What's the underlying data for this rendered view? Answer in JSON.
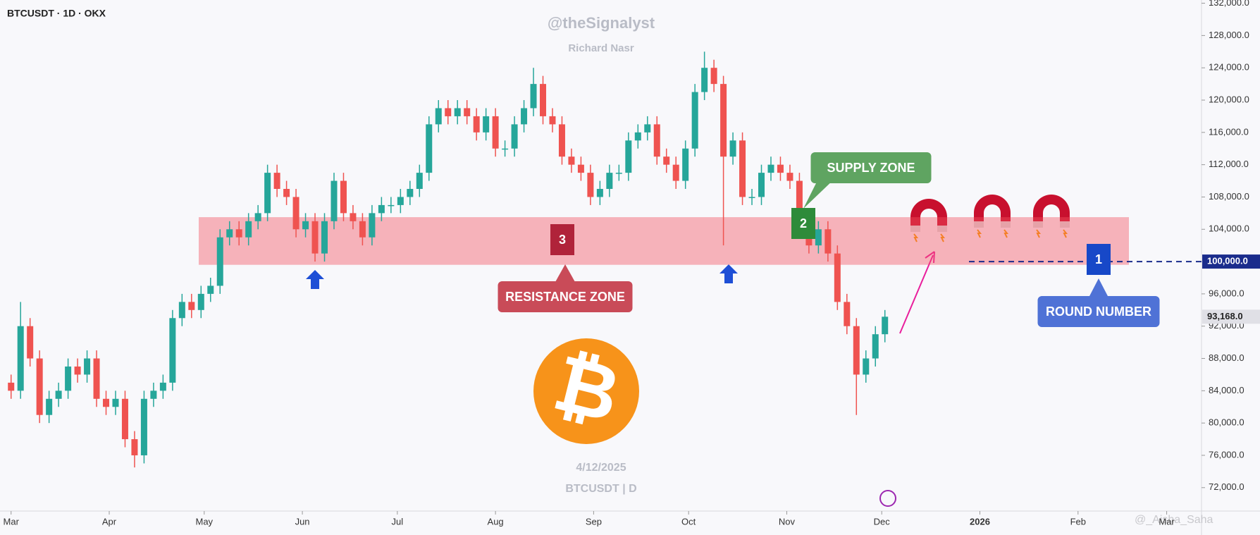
{
  "chart_data": {
    "type": "candlestick",
    "title": "BTCUSDT · 1D · OKX",
    "watermark": {
      "handle": "@theSignalyst",
      "author": "Richard Nasr",
      "date": "4/12/2025",
      "symbol": "BTCUSDT | D"
    },
    "credit": "@_Aisha_Saha",
    "colors": {
      "up": "#26a69a",
      "down": "#ef5350"
    },
    "x": [
      0,
      3,
      6,
      9,
      12,
      15,
      18,
      21,
      24,
      27,
      30,
      33,
      36,
      39,
      42,
      45,
      48,
      51,
      54,
      57,
      60,
      63,
      66,
      69,
      72,
      75,
      78,
      81,
      84,
      87,
      90,
      93,
      96,
      99,
      102,
      105,
      108,
      111,
      114,
      117,
      120,
      123,
      126,
      129,
      132,
      135,
      138,
      141,
      144,
      147,
      150,
      153,
      156,
      159,
      162,
      165,
      168,
      171,
      174,
      177,
      180,
      183,
      186,
      189,
      192,
      195,
      198,
      201,
      204,
      207,
      210,
      213,
      216,
      219,
      222,
      225,
      228,
      231,
      234,
      237,
      240,
      243,
      246,
      249,
      252,
      255,
      258,
      261,
      264,
      267,
      270,
      273,
      276
    ],
    "open": [
      85000,
      84000,
      92000,
      88000,
      81000,
      83000,
      84000,
      87000,
      86000,
      88000,
      83000,
      82000,
      83000,
      78000,
      76000,
      83000,
      84000,
      85000,
      93000,
      95000,
      94000,
      96000,
      97000,
      103000,
      104000,
      103000,
      105000,
      106000,
      111000,
      109000,
      108000,
      104000,
      105000,
      101000,
      105000,
      110000,
      106000,
      105000,
      103000,
      106000,
      107000,
      107000,
      108000,
      109000,
      111000,
      117000,
      119000,
      118000,
      119000,
      118000,
      116000,
      118000,
      114000,
      114000,
      117000,
      119000,
      122000,
      118000,
      117000,
      113000,
      112000,
      111000,
      108000,
      109000,
      111000,
      111000,
      115000,
      116000,
      117000,
      113000,
      112000,
      110000,
      114000,
      121000,
      124000,
      122000,
      113000,
      115000,
      108000,
      108000,
      111000,
      112000,
      111000,
      110000,
      104000,
      102000,
      104000,
      101000,
      95000,
      92000,
      86000,
      88000,
      91000
    ],
    "high": [
      86000,
      95000,
      93000,
      89000,
      84000,
      85000,
      88000,
      88000,
      89000,
      89000,
      84000,
      84000,
      84000,
      79000,
      84000,
      85000,
      86000,
      94000,
      96000,
      96000,
      97000,
      98000,
      104000,
      105000,
      105000,
      106000,
      107000,
      112000,
      112000,
      110000,
      109000,
      106000,
      106000,
      106000,
      111000,
      111000,
      107000,
      106000,
      107000,
      108000,
      108000,
      109000,
      110000,
      112000,
      118000,
      120000,
      120000,
      120000,
      120000,
      119000,
      119000,
      119000,
      115000,
      118000,
      120000,
      124000,
      123000,
      119000,
      118000,
      114000,
      113000,
      112000,
      110000,
      112000,
      112000,
      116000,
      117000,
      118000,
      118000,
      114000,
      113000,
      115000,
      122000,
      126000,
      125000,
      123000,
      116000,
      116000,
      109000,
      112000,
      113000,
      113000,
      112000,
      111000,
      105000,
      105000,
      105000,
      102000,
      96000,
      93000,
      89000,
      92000,
      94000
    ],
    "low": [
      83000,
      83000,
      87000,
      80000,
      80000,
      82000,
      83000,
      85000,
      85000,
      82000,
      81000,
      81000,
      77000,
      74500,
      75000,
      82000,
      83000,
      84000,
      92000,
      93000,
      93000,
      95000,
      96000,
      102000,
      102000,
      102000,
      104000,
      105000,
      108000,
      107000,
      103000,
      103000,
      100000,
      100000,
      104000,
      105000,
      104000,
      102000,
      102000,
      105000,
      106000,
      106000,
      107000,
      108000,
      110000,
      116000,
      117000,
      117000,
      117000,
      115000,
      115000,
      113000,
      113000,
      113000,
      116000,
      118000,
      117000,
      116000,
      112000,
      111000,
      110000,
      107000,
      107000,
      108000,
      110000,
      110000,
      114000,
      115000,
      112000,
      111000,
      109000,
      109000,
      113000,
      120000,
      121000,
      102000,
      112000,
      107000,
      107000,
      107000,
      110000,
      110000,
      109000,
      103000,
      101000,
      101000,
      100000,
      94000,
      91000,
      81000,
      85000,
      87000,
      90000
    ],
    "close": [
      84000,
      92000,
      88000,
      81000,
      83000,
      84000,
      87000,
      86000,
      88000,
      83000,
      82000,
      83000,
      78000,
      76000,
      83000,
      84000,
      85000,
      93000,
      95000,
      94000,
      96000,
      97000,
      103000,
      104000,
      103000,
      105000,
      106000,
      111000,
      109000,
      108000,
      104000,
      105000,
      101000,
      105000,
      110000,
      106000,
      105000,
      103000,
      106000,
      107000,
      107000,
      108000,
      109000,
      111000,
      117000,
      119000,
      118000,
      119000,
      118000,
      116000,
      118000,
      114000,
      114000,
      117000,
      119000,
      122000,
      118000,
      117000,
      113000,
      112000,
      111000,
      108000,
      109000,
      111000,
      111000,
      115000,
      116000,
      117000,
      113000,
      112000,
      110000,
      114000,
      121000,
      124000,
      122000,
      113000,
      115000,
      108000,
      108000,
      111000,
      112000,
      111000,
      110000,
      104000,
      102000,
      104000,
      101000,
      95000,
      92000,
      86000,
      88000,
      91000,
      93168
    ],
    "xlim": [
      -3.5,
      376
    ],
    "xticks": [
      {
        "value": 0,
        "label": "Mar"
      },
      {
        "value": 31,
        "label": "Apr"
      },
      {
        "value": 61,
        "label": "May"
      },
      {
        "value": 92,
        "label": "Jun"
      },
      {
        "value": 122,
        "label": "Jul"
      },
      {
        "value": 153,
        "label": "Aug"
      },
      {
        "value": 184,
        "label": "Sep"
      },
      {
        "value": 214,
        "label": "Oct"
      },
      {
        "value": 245,
        "label": "Nov"
      },
      {
        "value": 275,
        "label": "Dec"
      },
      {
        "value": 306,
        "label": "2026"
      },
      {
        "value": 337,
        "label": "Feb"
      },
      {
        "value": 365,
        "label": "Mar"
      }
    ],
    "ylim": [
      69100,
      132400
    ],
    "yticks": [
      {
        "value": 72000,
        "label": "72,000.0"
      },
      {
        "value": 76000,
        "label": "76,000.0"
      },
      {
        "value": 80000,
        "label": "80,000.0"
      },
      {
        "value": 84000,
        "label": "84,000.0"
      },
      {
        "value": 88000,
        "label": "88,000.0"
      },
      {
        "value": 92000,
        "label": "92,000.0"
      },
      {
        "value": 96000,
        "label": "96,000.0"
      },
      {
        "value": 104000,
        "label": "104,000.0"
      },
      {
        "value": 108000,
        "label": "108,000.0"
      },
      {
        "value": 112000,
        "label": "112,000.0"
      },
      {
        "value": 116000,
        "label": "116,000.0"
      },
      {
        "value": 120000,
        "label": "120,000.0"
      },
      {
        "value": 124000,
        "label": "124,000.0"
      },
      {
        "value": 128000,
        "label": "128,000.0"
      },
      {
        "value": 132000,
        "label": "132,000.0"
      }
    ],
    "zone": {
      "ylim": [
        99600,
        105500
      ],
      "badge": "3",
      "label": "RESISTANCE ZONE"
    },
    "supply": {
      "badge": "2",
      "label": "SUPPLY ZONE"
    },
    "round_number": {
      "value": 100000,
      "label": "100,000.0",
      "badge": "1",
      "text": "ROUND NUMBER"
    },
    "last_price": {
      "value": 93168,
      "label": "93,168.0"
    }
  }
}
